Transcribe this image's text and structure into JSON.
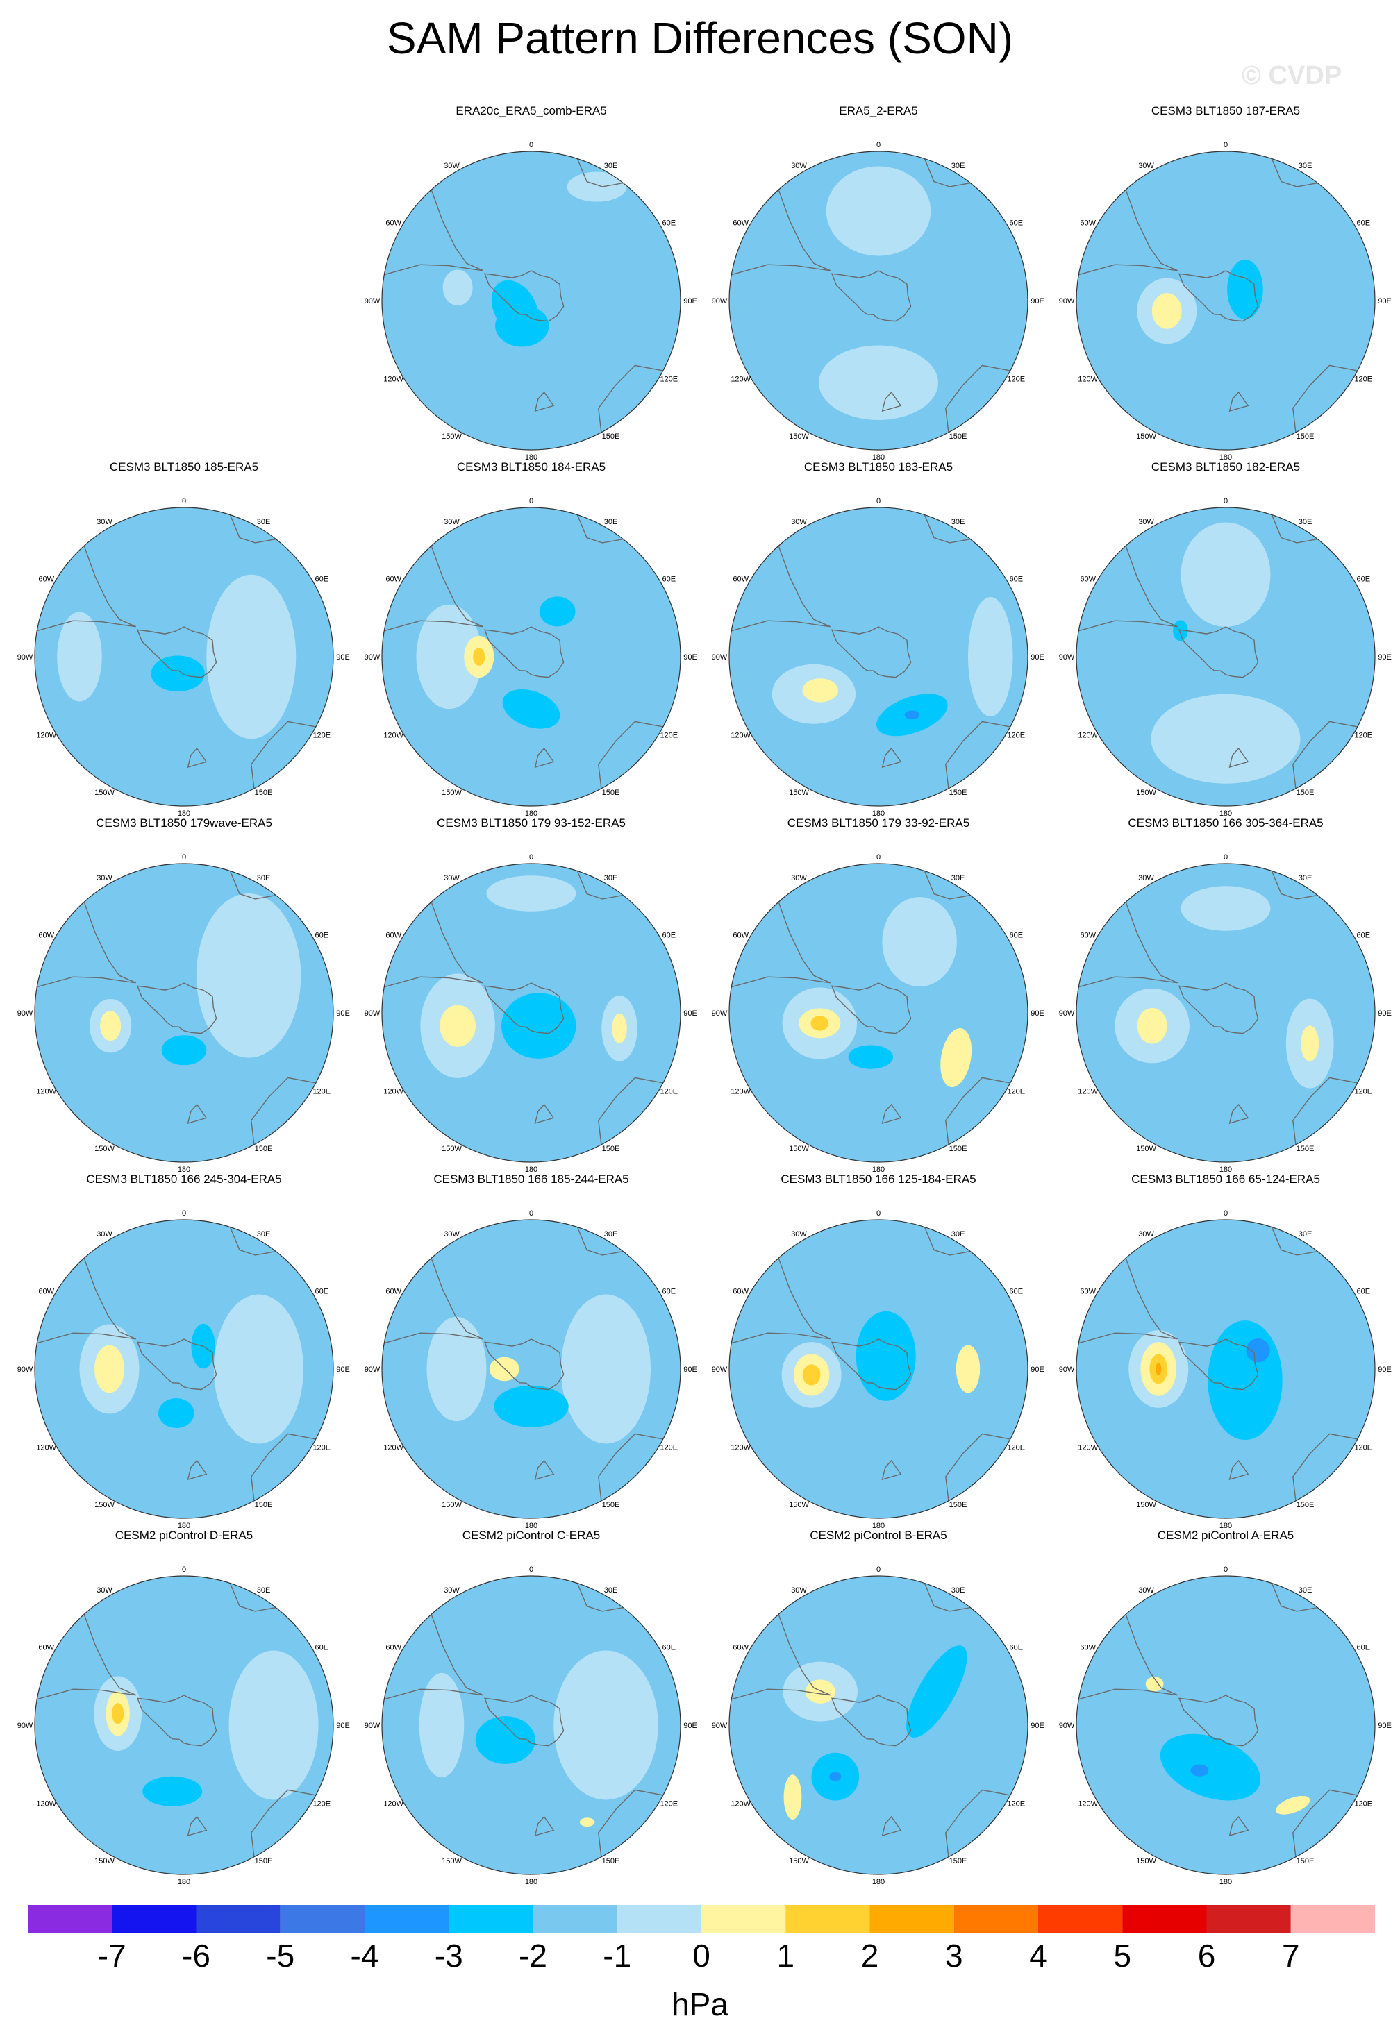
{
  "title": "SAM Pattern Differences (SON)",
  "watermark": "© CVDP",
  "colors": {
    "background": "#ffffff",
    "coastline": "#6b6b6b",
    "map_outline": "#333333"
  },
  "chart_data": {
    "type": "heatmap",
    "projection": "south polar stereographic",
    "variable": "sea level pressure difference",
    "units": "hPa",
    "levels": [
      -7,
      -6,
      -5,
      -4,
      -3,
      -2,
      -1,
      0,
      1,
      2,
      3,
      4,
      5,
      6,
      7
    ],
    "bin_colors": [
      "#8a2be2",
      "#1414f0",
      "#2846dc",
      "#3c78e6",
      "#1e96ff",
      "#00c8ff",
      "#78c8f0",
      "#b4e1f5",
      "#fff5a0",
      "#ffd232",
      "#ffaa00",
      "#ff7800",
      "#ff3c00",
      "#e60000",
      "#d21e1e",
      "#ffb4b4"
    ],
    "longitude_labels": [
      "0",
      "30E",
      "60E",
      "90E",
      "120E",
      "150E",
      "180",
      "150W",
      "120W",
      "90W",
      "60W",
      "30W"
    ],
    "panels": [
      {
        "name": "ERA20c_ERA5_comb-ERA5",
        "features": [
          {
            "lon": 250,
            "rr": 0.15,
            "rx": 0.42,
            "ry": 0.3,
            "rot": 50,
            "level": -1
          },
          {
            "lon": 245,
            "rr": 0.12,
            "rx": 0.2,
            "ry": 0.14,
            "rot": 60,
            "level": -2
          },
          {
            "lon": 200,
            "rr": 0.18,
            "rx": 0.18,
            "ry": 0.14,
            "rot": 0,
            "level": -2
          },
          {
            "lon": 30,
            "rr": 0.88,
            "rx": 0.2,
            "ry": 0.1,
            "rot": 0,
            "level": 0
          },
          {
            "lon": 280,
            "rr": 0.5,
            "rx": 0.1,
            "ry": 0.12,
            "rot": 0,
            "level": 0
          }
        ]
      },
      {
        "name": "ERA5_2-ERA5",
        "features": [
          {
            "lon": 0,
            "rr": 0.6,
            "rx": 0.35,
            "ry": 0.3,
            "rot": 0,
            "level": 0
          },
          {
            "lon": 180,
            "rr": 0.55,
            "rx": 0.4,
            "ry": 0.25,
            "rot": 0,
            "level": 0
          },
          {
            "lon": 270,
            "rr": 0.3,
            "rx": 0.07,
            "ry": 0.06,
            "rot": 0,
            "level": -1
          }
        ]
      },
      {
        "name": "CESM3 BLT1850 187-ERA5",
        "features": [
          {
            "lon": 260,
            "rr": 0.4,
            "rx": 0.2,
            "ry": 0.22,
            "rot": 0,
            "level": 0
          },
          {
            "lon": 260,
            "rr": 0.4,
            "rx": 0.1,
            "ry": 0.12,
            "rot": 0,
            "level": 1
          },
          {
            "lon": 60,
            "rr": 0.15,
            "rx": 0.12,
            "ry": 0.2,
            "rot": 0,
            "level": -2
          }
        ]
      },
      {
        "name": "CESM3 BLT1850 185-ERA5",
        "features": [
          {
            "lon": 90,
            "rr": 0.45,
            "rx": 0.3,
            "ry": 0.55,
            "rot": 0,
            "level": 0
          },
          {
            "lon": 270,
            "rr": 0.7,
            "rx": 0.15,
            "ry": 0.3,
            "rot": 0,
            "level": 0
          },
          {
            "lon": 200,
            "rr": 0.12,
            "rx": 0.18,
            "ry": 0.12,
            "rot": 0,
            "level": -2
          }
        ]
      },
      {
        "name": "CESM3 BLT1850 184-ERA5",
        "features": [
          {
            "lon": 270,
            "rr": 0.55,
            "rx": 0.22,
            "ry": 0.35,
            "rot": 0,
            "level": 0
          },
          {
            "lon": 270,
            "rr": 0.35,
            "rx": 0.1,
            "ry": 0.14,
            "rot": 0,
            "level": 1
          },
          {
            "lon": 270,
            "rr": 0.35,
            "rx": 0.04,
            "ry": 0.06,
            "rot": 0,
            "level": 2
          },
          {
            "lon": 180,
            "rr": 0.35,
            "rx": 0.2,
            "ry": 0.12,
            "rot": 20,
            "level": -2
          },
          {
            "lon": 30,
            "rr": 0.35,
            "rx": 0.12,
            "ry": 0.1,
            "rot": 0,
            "level": -2
          }
        ]
      },
      {
        "name": "CESM3 BLT1850 183-ERA5",
        "features": [
          {
            "lon": 240,
            "rr": 0.5,
            "rx": 0.28,
            "ry": 0.2,
            "rot": 0,
            "level": 0
          },
          {
            "lon": 240,
            "rr": 0.45,
            "rx": 0.12,
            "ry": 0.08,
            "rot": 0,
            "level": 1
          },
          {
            "lon": 150,
            "rr": 0.45,
            "rx": 0.25,
            "ry": 0.12,
            "rot": -20,
            "level": -2
          },
          {
            "lon": 150,
            "rr": 0.45,
            "rx": 0.05,
            "ry": 0.03,
            "rot": 0,
            "level": -3
          },
          {
            "lon": 90,
            "rr": 0.75,
            "rx": 0.15,
            "ry": 0.4,
            "rot": 0,
            "level": 0
          }
        ]
      },
      {
        "name": "CESM3 BLT1850 182-ERA5",
        "features": [
          {
            "lon": 0,
            "rr": 0.55,
            "rx": 0.3,
            "ry": 0.35,
            "rot": 0,
            "level": 0
          },
          {
            "lon": 180,
            "rr": 0.55,
            "rx": 0.5,
            "ry": 0.3,
            "rot": 0,
            "level": 0
          },
          {
            "lon": 300,
            "rr": 0.35,
            "rx": 0.05,
            "ry": 0.07,
            "rot": 0,
            "level": -2
          }
        ]
      },
      {
        "name": "CESM3 BLT1850 179wave-ERA5",
        "features": [
          {
            "lon": 60,
            "rr": 0.5,
            "rx": 0.35,
            "ry": 0.55,
            "rot": 0,
            "level": 0
          },
          {
            "lon": 260,
            "rr": 0.5,
            "rx": 0.14,
            "ry": 0.18,
            "rot": 0,
            "level": 0
          },
          {
            "lon": 260,
            "rr": 0.5,
            "rx": 0.07,
            "ry": 0.1,
            "rot": 0,
            "level": 1
          },
          {
            "lon": 180,
            "rr": 0.25,
            "rx": 0.15,
            "ry": 0.1,
            "rot": 0,
            "level": -2
          }
        ]
      },
      {
        "name": "CESM3 BLT1850 179 93-152-ERA5",
        "features": [
          {
            "lon": 260,
            "rr": 0.5,
            "rx": 0.25,
            "ry": 0.35,
            "rot": 0,
            "level": 0
          },
          {
            "lon": 260,
            "rr": 0.5,
            "rx": 0.12,
            "ry": 0.14,
            "rot": 0,
            "level": 1
          },
          {
            "lon": 100,
            "rr": 0.6,
            "rx": 0.12,
            "ry": 0.22,
            "rot": 0,
            "level": 0
          },
          {
            "lon": 100,
            "rr": 0.6,
            "rx": 0.05,
            "ry": 0.1,
            "rot": 0,
            "level": 1
          },
          {
            "lon": 150,
            "rr": 0.1,
            "rx": 0.25,
            "ry": 0.22,
            "rot": 0,
            "level": -2
          },
          {
            "lon": 0,
            "rr": 0.8,
            "rx": 0.3,
            "ry": 0.12,
            "rot": 0,
            "level": 0
          }
        ]
      },
      {
        "name": "CESM3 BLT1850 179 33-92-ERA5",
        "features": [
          {
            "lon": 260,
            "rr": 0.4,
            "rx": 0.25,
            "ry": 0.24,
            "rot": 0,
            "level": 0
          },
          {
            "lon": 260,
            "rr": 0.4,
            "rx": 0.14,
            "ry": 0.1,
            "rot": 0,
            "level": 1
          },
          {
            "lon": 260,
            "rr": 0.4,
            "rx": 0.06,
            "ry": 0.05,
            "rot": 0,
            "level": 2
          },
          {
            "lon": 120,
            "rr": 0.6,
            "rx": 0.1,
            "ry": 0.2,
            "rot": 10,
            "level": 1
          },
          {
            "lon": 190,
            "rr": 0.3,
            "rx": 0.15,
            "ry": 0.08,
            "rot": 0,
            "level": -2
          },
          {
            "lon": 30,
            "rr": 0.55,
            "rx": 0.25,
            "ry": 0.3,
            "rot": 0,
            "level": 0
          }
        ]
      },
      {
        "name": "CESM3 BLT1850 166 305-364-ERA5",
        "features": [
          {
            "lon": 0,
            "rr": 0.7,
            "rx": 0.3,
            "ry": 0.15,
            "rot": 0,
            "level": 0
          },
          {
            "lon": 260,
            "rr": 0.5,
            "rx": 0.25,
            "ry": 0.25,
            "rot": 0,
            "level": 0
          },
          {
            "lon": 260,
            "rr": 0.5,
            "rx": 0.1,
            "ry": 0.12,
            "rot": 0,
            "level": 1
          },
          {
            "lon": 110,
            "rr": 0.6,
            "rx": 0.16,
            "ry": 0.3,
            "rot": 0,
            "level": 0
          },
          {
            "lon": 110,
            "rr": 0.6,
            "rx": 0.06,
            "ry": 0.12,
            "rot": 0,
            "level": 1
          },
          {
            "lon": 190,
            "rr": 0.3,
            "rx": 0.1,
            "ry": 0.06,
            "rot": 0,
            "level": -1
          }
        ]
      },
      {
        "name": "CESM3 BLT1850 166 245-304-ERA5",
        "features": [
          {
            "lon": 90,
            "rr": 0.5,
            "rx": 0.3,
            "ry": 0.5,
            "rot": 0,
            "level": 0
          },
          {
            "lon": 270,
            "rr": 0.5,
            "rx": 0.2,
            "ry": 0.3,
            "rot": 0,
            "level": 0
          },
          {
            "lon": 270,
            "rr": 0.5,
            "rx": 0.1,
            "ry": 0.16,
            "rot": 0,
            "level": 1
          },
          {
            "lon": 190,
            "rr": 0.3,
            "rx": 0.12,
            "ry": 0.1,
            "rot": 0,
            "level": -2
          },
          {
            "lon": 40,
            "rr": 0.2,
            "rx": 0.08,
            "ry": 0.15,
            "rot": 0,
            "level": -2
          }
        ]
      },
      {
        "name": "CESM3 BLT1850 166 185-244-ERA5",
        "features": [
          {
            "lon": 90,
            "rr": 0.5,
            "rx": 0.3,
            "ry": 0.5,
            "rot": 0,
            "level": 0
          },
          {
            "lon": 270,
            "rr": 0.5,
            "rx": 0.2,
            "ry": 0.35,
            "rot": 0,
            "level": 0
          },
          {
            "lon": 270,
            "rr": 0.18,
            "rx": 0.1,
            "ry": 0.08,
            "rot": 0,
            "level": 1
          },
          {
            "lon": 180,
            "rr": 0.25,
            "rx": 0.25,
            "ry": 0.14,
            "rot": 0,
            "level": -2
          }
        ]
      },
      {
        "name": "CESM3 BLT1850 166 125-184-ERA5",
        "features": [
          {
            "lon": 265,
            "rr": 0.45,
            "rx": 0.2,
            "ry": 0.22,
            "rot": 0,
            "level": 0
          },
          {
            "lon": 265,
            "rr": 0.45,
            "rx": 0.12,
            "ry": 0.14,
            "rot": 0,
            "level": 1
          },
          {
            "lon": 265,
            "rr": 0.45,
            "rx": 0.06,
            "ry": 0.07,
            "rot": 0,
            "level": 2
          },
          {
            "lon": 90,
            "rr": 0.6,
            "rx": 0.08,
            "ry": 0.16,
            "rot": 0,
            "level": 1
          },
          {
            "lon": 30,
            "rr": 0.1,
            "rx": 0.2,
            "ry": 0.3,
            "rot": 0,
            "level": -2
          }
        ]
      },
      {
        "name": "CESM3 BLT1850 166 65-124-ERA5",
        "features": [
          {
            "lon": 270,
            "rr": 0.45,
            "rx": 0.2,
            "ry": 0.26,
            "rot": 0,
            "level": 0
          },
          {
            "lon": 270,
            "rr": 0.45,
            "rx": 0.12,
            "ry": 0.18,
            "rot": 0,
            "level": 1
          },
          {
            "lon": 270,
            "rr": 0.45,
            "rx": 0.06,
            "ry": 0.1,
            "rot": 0,
            "level": 2
          },
          {
            "lon": 270,
            "rr": 0.45,
            "rx": 0.02,
            "ry": 0.04,
            "rot": 0,
            "level": 3
          },
          {
            "lon": 120,
            "rr": 0.15,
            "rx": 0.25,
            "ry": 0.4,
            "rot": 0,
            "level": -2
          },
          {
            "lon": 60,
            "rr": 0.25,
            "rx": 0.08,
            "ry": 0.08,
            "rot": 0,
            "level": -3
          }
        ]
      },
      {
        "name": "CESM2 piControl D-ERA5",
        "features": [
          {
            "lon": 280,
            "rr": 0.45,
            "rx": 0.16,
            "ry": 0.25,
            "rot": 0,
            "level": 0
          },
          {
            "lon": 280,
            "rr": 0.45,
            "rx": 0.08,
            "ry": 0.15,
            "rot": 0,
            "level": 1
          },
          {
            "lon": 280,
            "rr": 0.45,
            "rx": 0.04,
            "ry": 0.07,
            "rot": 0,
            "level": 2
          },
          {
            "lon": 190,
            "rr": 0.45,
            "rx": 0.2,
            "ry": 0.1,
            "rot": 0,
            "level": -2
          },
          {
            "lon": 90,
            "rr": 0.6,
            "rx": 0.3,
            "ry": 0.5,
            "rot": 0,
            "level": 0
          }
        ]
      },
      {
        "name": "CESM2 piControl C-ERA5",
        "features": [
          {
            "lon": 90,
            "rr": 0.5,
            "rx": 0.35,
            "ry": 0.5,
            "rot": 0,
            "level": 0
          },
          {
            "lon": 270,
            "rr": 0.6,
            "rx": 0.15,
            "ry": 0.35,
            "rot": 0,
            "level": 0
          },
          {
            "lon": 240,
            "rr": 0.2,
            "rx": 0.2,
            "ry": 0.16,
            "rot": 0,
            "level": -2
          },
          {
            "lon": 150,
            "rr": 0.75,
            "rx": 0.05,
            "ry": 0.03,
            "rot": 0,
            "level": 1
          }
        ]
      },
      {
        "name": "CESM2 piControl B-ERA5",
        "features": [
          {
            "lon": 300,
            "rr": 0.45,
            "rx": 0.25,
            "ry": 0.2,
            "rot": 0,
            "level": 0
          },
          {
            "lon": 300,
            "rr": 0.45,
            "rx": 0.1,
            "ry": 0.08,
            "rot": 0,
            "level": 1
          },
          {
            "lon": 60,
            "rr": 0.45,
            "rx": 0.12,
            "ry": 0.35,
            "rot": 30,
            "level": -2
          },
          {
            "lon": 220,
            "rr": 0.45,
            "rx": 0.16,
            "ry": 0.16,
            "rot": 0,
            "level": -2
          },
          {
            "lon": 220,
            "rr": 0.45,
            "rx": 0.04,
            "ry": 0.03,
            "rot": 0,
            "level": -3
          },
          {
            "lon": 230,
            "rr": 0.75,
            "rx": 0.06,
            "ry": 0.15,
            "rot": 0,
            "level": 1
          }
        ]
      },
      {
        "name": "CESM2 piControl A-ERA5",
        "features": [
          {
            "lon": 200,
            "rr": 0.3,
            "rx": 0.35,
            "ry": 0.2,
            "rot": 20,
            "level": -2
          },
          {
            "lon": 210,
            "rr": 0.35,
            "rx": 0.06,
            "ry": 0.04,
            "rot": 0,
            "level": -3
          },
          {
            "lon": 140,
            "rr": 0.7,
            "rx": 0.12,
            "ry": 0.05,
            "rot": -20,
            "level": 1
          },
          {
            "lon": 300,
            "rr": 0.55,
            "rx": 0.06,
            "ry": 0.05,
            "rot": 0,
            "level": 1
          }
        ]
      }
    ]
  }
}
